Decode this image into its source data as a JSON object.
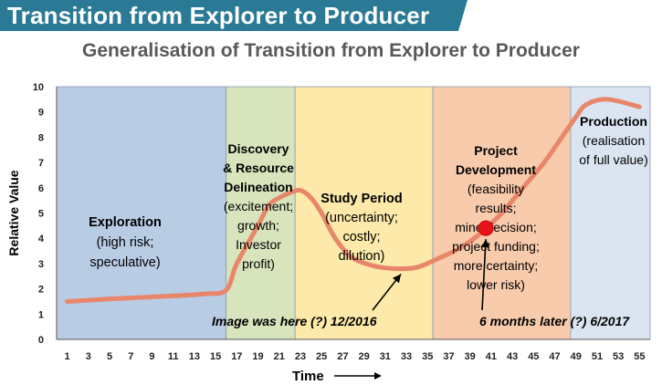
{
  "banner": {
    "title": "Transition from Explorer to Producer",
    "color": "#2a7a96"
  },
  "chart_data": {
    "type": "line",
    "title": "Generalisation of Transition from Explorer to Producer",
    "xlabel": "Time",
    "ylabel": "Relative Value",
    "xlim": [
      1,
      55
    ],
    "ylim": [
      0,
      10
    ],
    "x_ticks": [
      1,
      3,
      5,
      7,
      9,
      11,
      13,
      15,
      17,
      19,
      21,
      23,
      25,
      27,
      29,
      31,
      33,
      35,
      37,
      39,
      41,
      43,
      45,
      47,
      49,
      51,
      53,
      55
    ],
    "y_ticks": [
      0,
      1,
      2,
      3,
      4,
      5,
      6,
      7,
      8,
      9,
      10
    ],
    "grid": false,
    "line_color": "#e8866a",
    "x": [
      1,
      5,
      10,
      14,
      16,
      17,
      19,
      20,
      21,
      22,
      23,
      24,
      25,
      26,
      27,
      28,
      30,
      32,
      34,
      36,
      38,
      40,
      42,
      44,
      46,
      48,
      49,
      50,
      52,
      55
    ],
    "y": [
      1.5,
      1.6,
      1.7,
      1.8,
      1.95,
      3.0,
      4.5,
      5.3,
      5.6,
      5.8,
      5.9,
      5.6,
      5.0,
      4.2,
      3.6,
      3.2,
      2.9,
      2.8,
      2.85,
      3.2,
      3.6,
      4.2,
      5.0,
      6.0,
      7.0,
      8.2,
      8.8,
      9.3,
      9.5,
      9.2
    ],
    "phases": [
      {
        "name": "exploration",
        "x_start": 0,
        "x_end": 16,
        "color": "#b8cce4",
        "lines": [
          "Exploration",
          "(high risk;",
          "speculative)"
        ]
      },
      {
        "name": "discovery",
        "x_start": 16,
        "x_end": 22.5,
        "color": "#d7e4bc",
        "lines": [
          "Discovery",
          "& Resource",
          "Delineation",
          "(excitement;",
          "growth;",
          "Investor",
          "profit)"
        ]
      },
      {
        "name": "study",
        "x_start": 22.5,
        "x_end": 35.5,
        "color": "#fde9a9",
        "lines": [
          "Study Period",
          "(uncertainty;",
          "costly;",
          "dilution)"
        ]
      },
      {
        "name": "development",
        "x_start": 35.5,
        "x_end": 48.5,
        "color": "#f8cbad",
        "lines": [
          "Project",
          "Development",
          "(feasibility",
          "results;",
          "mine decision;",
          "project funding;",
          "more certainty;",
          "lower risk)"
        ]
      },
      {
        "name": "production",
        "x_start": 48.5,
        "x_end": 56,
        "color": "#dbe5f1",
        "lines": [
          "Production",
          "(realisation",
          "of full value)"
        ]
      }
    ],
    "annotations": [
      {
        "text": "Image was here (?) 12/2016",
        "point_x": 33,
        "point_y": 2.8
      },
      {
        "text": "6 months later (?) 6/2017",
        "point_x": 40.5,
        "point_y": 4.4
      }
    ],
    "marker": {
      "x": 40.5,
      "y": 4.4,
      "color": "#e8141b"
    }
  }
}
